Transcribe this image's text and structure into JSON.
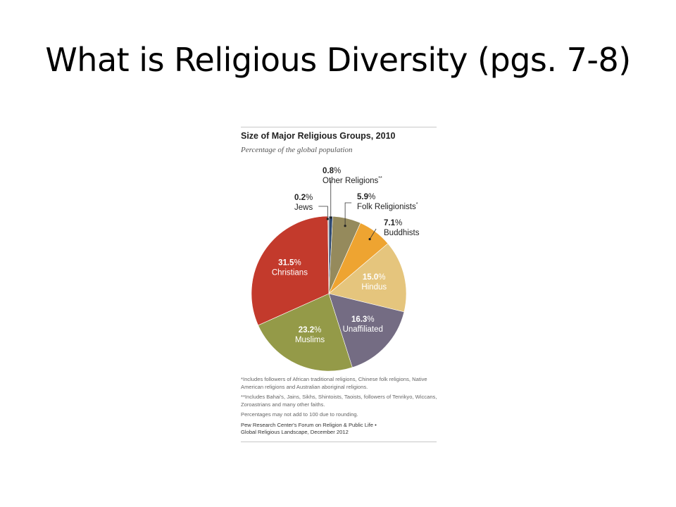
{
  "slide": {
    "title": "What is Religious Diversity (pgs. 7-8)"
  },
  "chart_data": {
    "type": "pie",
    "title": "Size of Major Religious Groups, 2010",
    "subtitle": "Percentage of the global population",
    "unit": "%",
    "slices": [
      {
        "name": "Other Religions",
        "mark": "**",
        "value": 0.8,
        "value_label": "0.8",
        "color": "#2f4a73"
      },
      {
        "name": "Folk Religionists",
        "mark": "*",
        "value": 5.9,
        "value_label": "5.9",
        "color": "#958a5c"
      },
      {
        "name": "Buddhists",
        "mark": "",
        "value": 7.1,
        "value_label": "7.1",
        "color": "#eea431"
      },
      {
        "name": "Hindus",
        "mark": "",
        "value": 15.0,
        "value_label": "15.0",
        "color": "#e5c57d"
      },
      {
        "name": "Unaffiliated",
        "mark": "",
        "value": 16.3,
        "value_label": "16.3",
        "color": "#746c83"
      },
      {
        "name": "Muslims",
        "mark": "",
        "value": 23.2,
        "value_label": "23.2",
        "color": "#949a48"
      },
      {
        "name": "Christians",
        "mark": "",
        "value": 31.5,
        "value_label": "31.5",
        "color": "#c33a2c"
      },
      {
        "name": "Jews",
        "mark": "",
        "value": 0.2,
        "value_label": "0.2",
        "color": "#b8b8b8"
      }
    ]
  },
  "notes": {
    "note1": "*Includes followers of African traditional religions, Chinese folk religions, Native American religions and Australian aboriginal religions.",
    "note2": "**Includes Bahai's, Jains, Sikhs, Shintoists, Taoists, followers of Tenrikyo, Wiccans, Zoroastrians and many other faiths.",
    "note3": "Percentages may not add to 100 due to rounding.",
    "source1": "Pew Research Center's Forum on Religion & Public Life •",
    "source2": "Global Religious Landscape, December 2012"
  }
}
